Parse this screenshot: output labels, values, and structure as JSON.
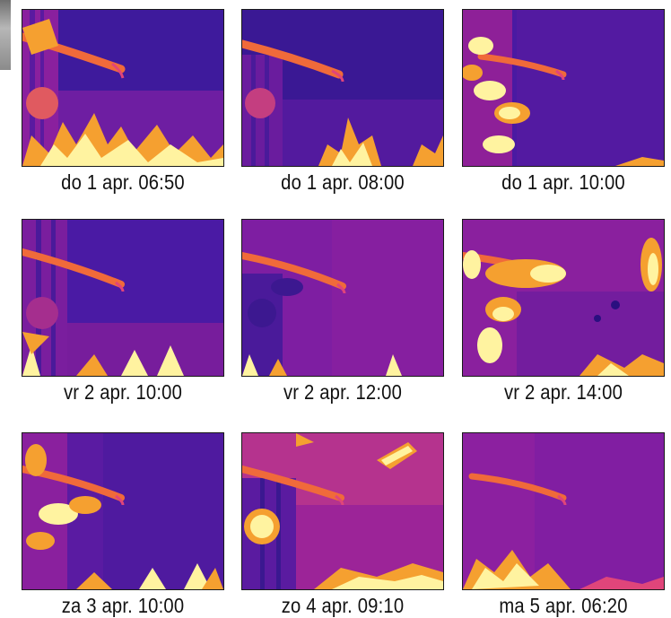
{
  "images": [
    {
      "caption": "do 1 apr. 06:50"
    },
    {
      "caption": "do 1 apr. 08:00"
    },
    {
      "caption": "do 1 apr. 10:00"
    },
    {
      "caption": "vr 2 apr. 10:00"
    },
    {
      "caption": "vr 2 apr. 12:00"
    },
    {
      "caption": "vr 2 apr. 14:00"
    },
    {
      "caption": "za 3 apr. 10:00"
    },
    {
      "caption": "zo 4 apr. 09:10"
    },
    {
      "caption": "ma 5 apr. 06:20"
    }
  ],
  "palette": {
    "cold": "#2a0f80",
    "cool": "#4a1aa6",
    "mid": "#a0209c",
    "warm": "#e0457a",
    "hot": "#f5a030",
    "hottest": "#fff3a0"
  }
}
